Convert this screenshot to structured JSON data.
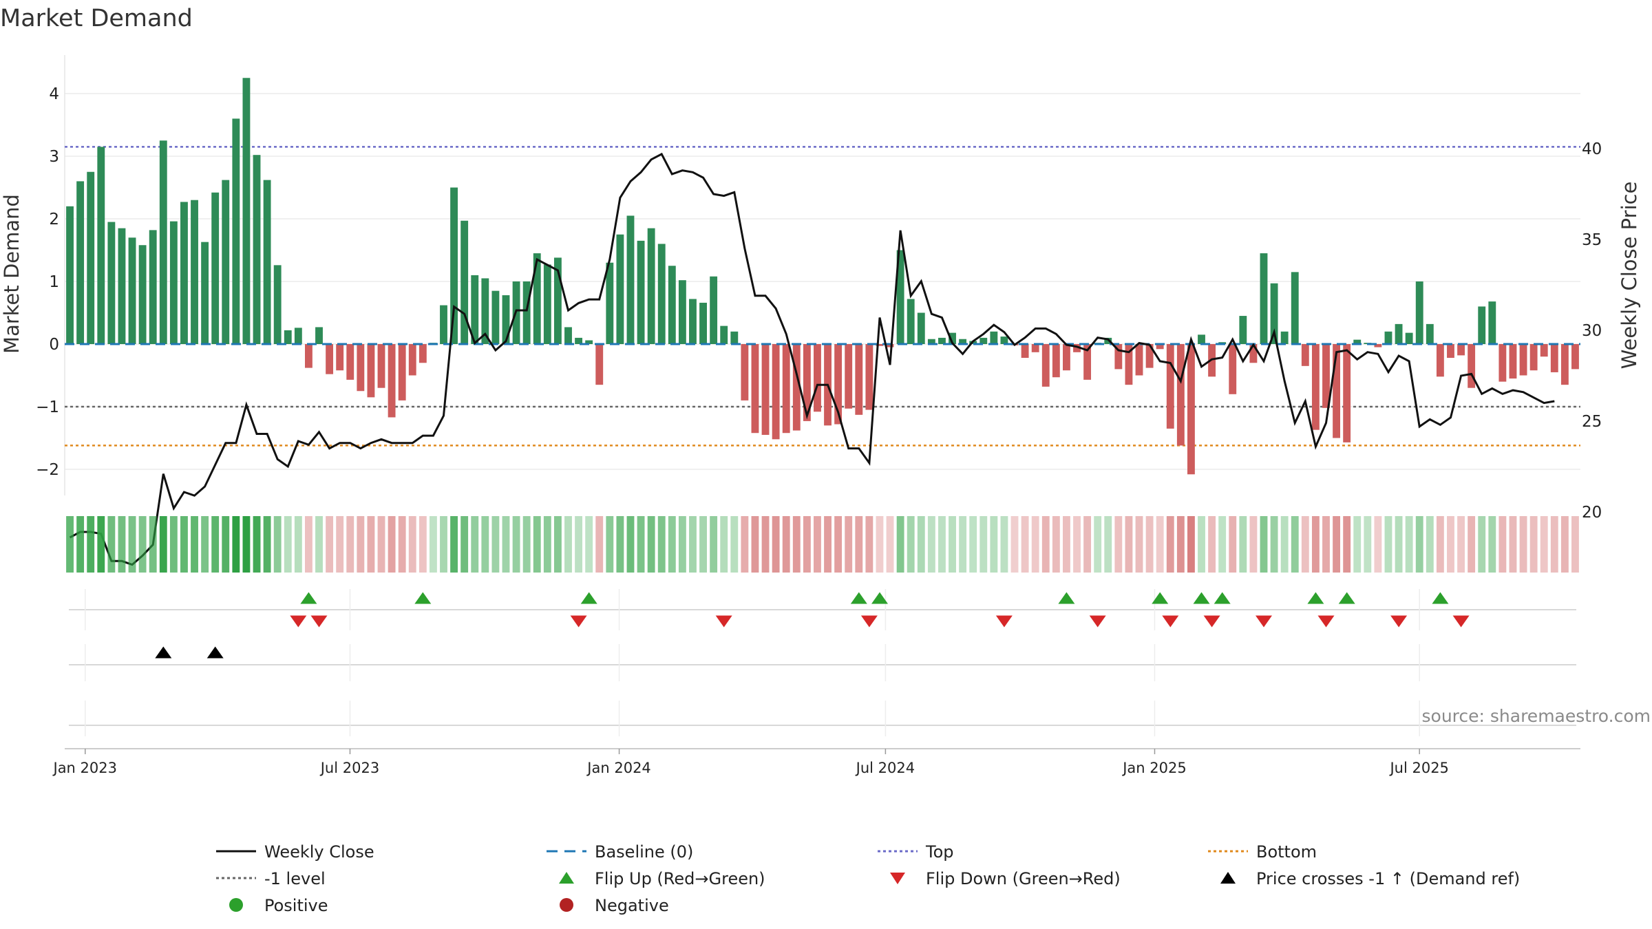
{
  "chart_data": {
    "type": "bar",
    "title": "Market Demand",
    "ylabel": "Market Demand",
    "y2label": "Weekly Close Price",
    "ylim": [
      -2.4,
      4.5
    ],
    "y2lim": [
      16,
      40
    ],
    "yticks": [
      {
        "v": 4,
        "label": "4"
      },
      {
        "v": 3,
        "label": "3"
      },
      {
        "v": 2,
        "label": "2"
      },
      {
        "v": 1,
        "label": "1"
      },
      {
        "v": 0,
        "label": "0"
      },
      {
        "v": -1,
        "label": "−1"
      },
      {
        "v": -2,
        "label": "−2"
      }
    ],
    "y2ticks": [
      {
        "v": 40,
        "label": "40"
      },
      {
        "v": 35,
        "label": "35"
      },
      {
        "v": 30,
        "label": "30"
      },
      {
        "v": 25,
        "label": "25"
      },
      {
        "v": 20,
        "label": "20"
      }
    ],
    "xticks": [
      {
        "date": "2023-01-01",
        "label": "Jan 2023"
      },
      {
        "date": "2023-07-01",
        "label": "Jul 2023"
      },
      {
        "date": "2024-01-01",
        "label": "Jan 2024"
      },
      {
        "date": "2024-07-01",
        "label": "Jul 2024"
      },
      {
        "date": "2025-01-01",
        "label": "Jan 2025"
      },
      {
        "date": "2025-07-01",
        "label": "Jul 2025"
      }
    ],
    "start_date": "2022-12-18",
    "end_date": "2025-10-19",
    "reference_lines": {
      "top": 3.15,
      "minus_one": -1,
      "bottom": -1.62
    },
    "colors": {
      "positive_bar": "#2e8b57",
      "negative_bar": "#cd5c5c",
      "close_line": "#111111",
      "baseline": "#1f77b4",
      "top_line": "#6b6bc8",
      "minus_one_line": "#666666",
      "bottom_line": "#e08a1e",
      "flip_up": "#2ca02c",
      "flip_down": "#d62728",
      "price_cross": "#000000",
      "positive": "#2ca02c",
      "negative": "#b22222"
    },
    "demand": [
      2.2,
      2.6,
      2.75,
      3.15,
      1.95,
      1.85,
      1.7,
      1.58,
      1.82,
      3.25,
      1.96,
      2.27,
      2.3,
      1.63,
      2.42,
      2.62,
      3.6,
      4.25,
      3.02,
      2.62,
      1.26,
      0.22,
      0.26,
      -0.38,
      0.27,
      -0.48,
      -0.42,
      -0.57,
      -0.75,
      -0.85,
      -0.7,
      -1.17,
      -0.9,
      -0.5,
      -0.3,
      0.02,
      0.62,
      2.5,
      1.97,
      1.1,
      1.05,
      0.85,
      0.78,
      1,
      1,
      1.45,
      1.27,
      1.38,
      0.27,
      0.1,
      0.06,
      -0.65,
      1.3,
      1.75,
      2.05,
      1.65,
      1.85,
      1.6,
      1.25,
      1.02,
      0.72,
      0.66,
      1.08,
      0.29,
      0.2,
      -0.9,
      -1.42,
      -1.45,
      -1.52,
      -1.42,
      -1.38,
      -1.23,
      -1.08,
      -1.3,
      -1.28,
      -1.03,
      -1.13,
      -1.05,
      -0.03,
      -0.05,
      1.5,
      0.72,
      0.5,
      0.08,
      0.1,
      0.18,
      0.08,
      0.05,
      0.1,
      0.2,
      0.12,
      -0.02,
      -0.22,
      -0.13,
      -0.68,
      -0.53,
      -0.42,
      -0.13,
      -0.57,
      0.02,
      0.1,
      -0.4,
      -0.65,
      -0.5,
      -0.38,
      -0.08,
      -1.35,
      -1.62,
      -2.08,
      0.15,
      -0.52,
      0.03,
      -0.8,
      0.45,
      -0.3,
      1.45,
      0.97,
      0.2,
      1.15,
      -0.35,
      -1.37,
      -1.02,
      -1.5,
      -1.57,
      0.07,
      0.02,
      -0.05,
      0.2,
      0.32,
      0.18,
      1,
      0.32,
      -0.52,
      -0.22,
      -0.18,
      -0.7,
      0.6,
      0.68,
      -0.6,
      -0.55,
      -0.5,
      -0.42,
      -0.2,
      -0.45,
      -0.65,
      -0.4
    ],
    "close": [
      18.6,
      18.9,
      18.9,
      18.8,
      17.3,
      17.3,
      17.1,
      17.6,
      18.2,
      22.1,
      20.2,
      21.1,
      20.9,
      21.4,
      22.6,
      23.8,
      23.8,
      25.9,
      24.3,
      24.3,
      22.9,
      22.5,
      23.9,
      23.7,
      24.4,
      23.5,
      23.8,
      23.8,
      23.5,
      23.8,
      24,
      23.8,
      23.8,
      23.8,
      24.2,
      24.2,
      25.3,
      31.3,
      30.9,
      29.3,
      29.8,
      28.9,
      29.4,
      31.1,
      31.1,
      33.9,
      33.6,
      33.3,
      31.1,
      31.5,
      31.7,
      31.7,
      33.9,
      37.3,
      38.2,
      38.7,
      39.4,
      39.7,
      38.6,
      38.8,
      38.7,
      38.4,
      37.5,
      37.4,
      37.6,
      34.5,
      31.9,
      31.9,
      31.2,
      29.8,
      27.6,
      25.3,
      27,
      27,
      25.5,
      23.5,
      23.5,
      22.7,
      30.7,
      28.1,
      35.5,
      31.9,
      32.7,
      30.9,
      30.7,
      29.3,
      28.7,
      29.4,
      29.8,
      30.3,
      29.9,
      29.2,
      29.6,
      30.1,
      30.1,
      29.8,
      29.2,
      29.1,
      28.9,
      29.6,
      29.5,
      28.9,
      28.8,
      29.3,
      29.2,
      28.3,
      28.2,
      27.2,
      29.5,
      28,
      28.4,
      28.5,
      29.5,
      28.3,
      29.2,
      28.3,
      29.9,
      27.2,
      24.9,
      26.1,
      23.6,
      24.9,
      28.8,
      28.9,
      28.4,
      28.8,
      28.7,
      27.7,
      28.6,
      28.3,
      24.7,
      25.1,
      24.8,
      25.2,
      27.5,
      27.6,
      26.5,
      26.8,
      26.5,
      26.7,
      26.6,
      26.3,
      26,
      26.1
    ],
    "flip_up": [
      23,
      34,
      50,
      76,
      78,
      96,
      105,
      109,
      111,
      120,
      123,
      132
    ],
    "flip_down": [
      22,
      24,
      49,
      63,
      77,
      90,
      99,
      106,
      110,
      115,
      121,
      128,
      134
    ],
    "price_crosses": [
      9,
      14
    ],
    "source": "source: sharemaestro.com",
    "legend": [
      {
        "label": "Weekly Close",
        "key": "close"
      },
      {
        "label": "Baseline (0)",
        "key": "baseline"
      },
      {
        "label": "Top",
        "key": "top"
      },
      {
        "label": "Bottom",
        "key": "bottom"
      },
      {
        "label": "-1 level",
        "key": "minus_one"
      },
      {
        "label": "Flip Up (Red→Green)",
        "key": "flip_up"
      },
      {
        "label": "Flip Down (Green→Red)",
        "key": "flip_down"
      },
      {
        "label": "Price crosses -1 ↑ (Demand ref)",
        "key": "price_cross"
      },
      {
        "label": "Positive",
        "key": "positive"
      },
      {
        "label": "Negative",
        "key": "negative"
      }
    ]
  }
}
